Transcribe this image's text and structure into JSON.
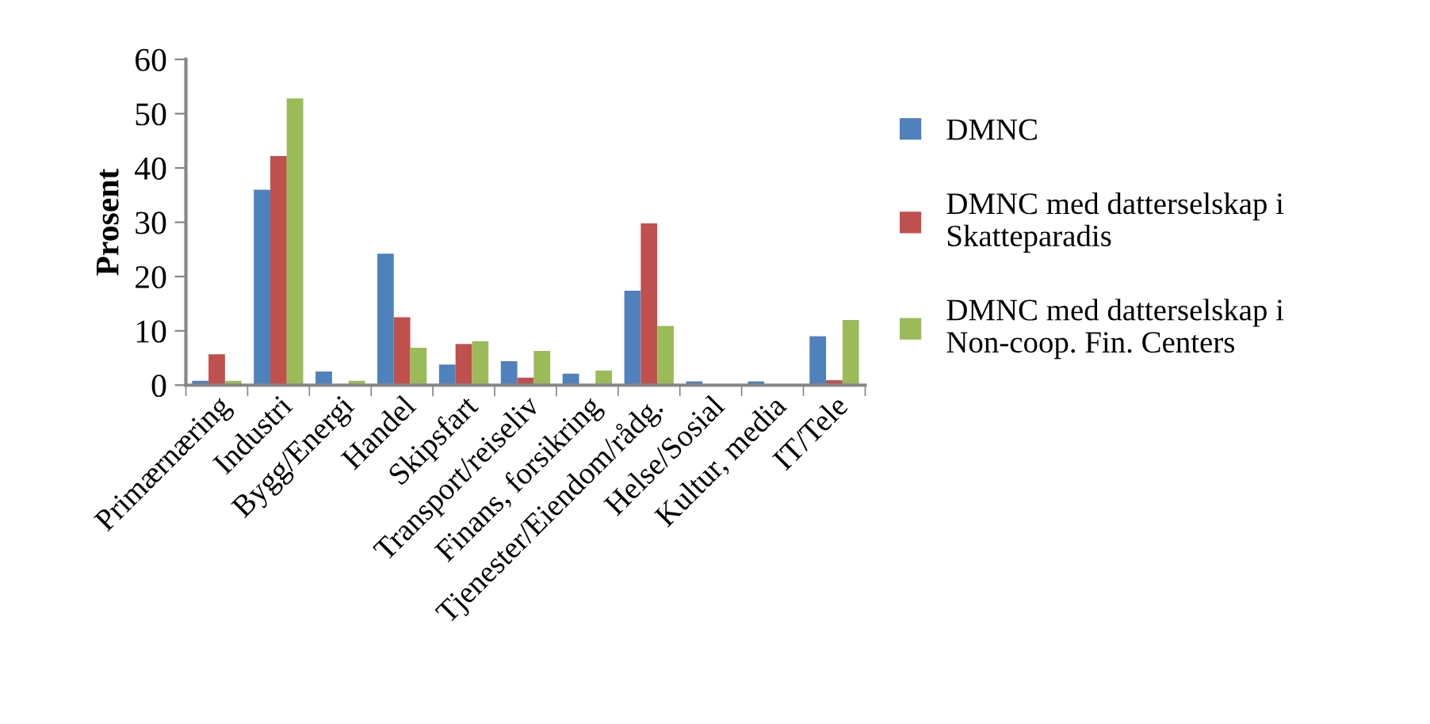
{
  "chart_data": {
    "type": "bar",
    "ylabel": "Prosent",
    "categories": [
      "Primærnæring",
      "Industri",
      "Bygg/Energi",
      "Handel",
      "Skipsfart",
      "Transport/reiseliv",
      "Finans, forsikring",
      "Tjenester/Eiendom/rådg.",
      "Helse/Sosial",
      "Kultur, media",
      "IT/Tele"
    ],
    "series": [
      {
        "name": "DMNC",
        "color": "#4f81bd",
        "values": [
          0.8,
          36,
          2.5,
          24.2,
          3.8,
          4.4,
          2.1,
          17.4,
          0.7,
          0.7,
          9.0
        ]
      },
      {
        "name": "DMNC med datterselskap i Skatteparadis",
        "color": "#c0504d",
        "values": [
          5.7,
          42.2,
          null,
          12.5,
          7.6,
          1.4,
          null,
          29.8,
          null,
          null,
          0.9
        ]
      },
      {
        "name": "DMNC med datterselskap i Non-coop. Fin. Centers",
        "color": "#9bbb59",
        "values": [
          0.8,
          52.8,
          0.8,
          6.9,
          8.1,
          6.3,
          2.7,
          10.9,
          null,
          null,
          12.0
        ]
      }
    ],
    "ylim": [
      0,
      60
    ],
    "yticks": [
      0,
      10,
      20,
      30,
      40,
      50,
      60
    ],
    "grid": false,
    "legend": "right"
  }
}
